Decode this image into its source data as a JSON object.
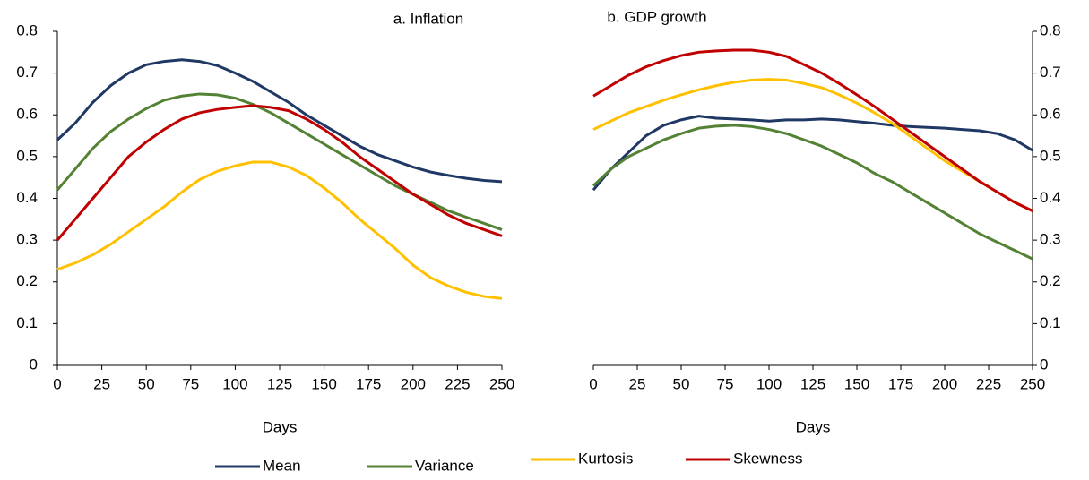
{
  "chart_data": [
    {
      "type": "line",
      "title": "a. Inflation",
      "x_label": "Days",
      "y_axis_side": "left",
      "legend": "bottom",
      "x": [
        0,
        10,
        20,
        30,
        40,
        50,
        60,
        70,
        80,
        90,
        100,
        110,
        120,
        130,
        140,
        150,
        160,
        170,
        180,
        190,
        200,
        210,
        220,
        230,
        240,
        250
      ],
      "xlim": [
        0,
        250
      ],
      "xticks": [
        0,
        25,
        50,
        75,
        100,
        125,
        150,
        175,
        200,
        225,
        250
      ],
      "ylim": [
        0,
        0.8
      ],
      "yticks": [
        0,
        0.1,
        0.2,
        0.3,
        0.4,
        0.5,
        0.6,
        0.7,
        0.8
      ],
      "series": [
        {
          "name": "Mean",
          "color": "#203864",
          "values": [
            0.54,
            0.58,
            0.63,
            0.67,
            0.7,
            0.72,
            0.728,
            0.732,
            0.728,
            0.718,
            0.7,
            0.68,
            0.655,
            0.63,
            0.6,
            0.575,
            0.55,
            0.525,
            0.505,
            0.49,
            0.475,
            0.463,
            0.455,
            0.448,
            0.443,
            0.44
          ]
        },
        {
          "name": "Variance",
          "color": "#548235",
          "values": [
            0.42,
            0.47,
            0.52,
            0.56,
            0.59,
            0.615,
            0.635,
            0.645,
            0.65,
            0.648,
            0.64,
            0.625,
            0.605,
            0.58,
            0.555,
            0.53,
            0.505,
            0.48,
            0.455,
            0.43,
            0.41,
            0.39,
            0.37,
            0.355,
            0.34,
            0.325
          ]
        },
        {
          "name": "Kurtosis",
          "color": "#ffc000",
          "values": [
            0.23,
            0.245,
            0.265,
            0.29,
            0.32,
            0.35,
            0.38,
            0.415,
            0.445,
            0.465,
            0.478,
            0.487,
            0.487,
            0.475,
            0.455,
            0.425,
            0.39,
            0.35,
            0.315,
            0.28,
            0.24,
            0.21,
            0.19,
            0.175,
            0.165,
            0.16
          ]
        },
        {
          "name": "Skewness",
          "color": "#c00000",
          "values": [
            0.3,
            0.35,
            0.4,
            0.45,
            0.5,
            0.535,
            0.565,
            0.59,
            0.605,
            0.613,
            0.618,
            0.622,
            0.618,
            0.61,
            0.59,
            0.565,
            0.535,
            0.5,
            0.47,
            0.44,
            0.41,
            0.385,
            0.36,
            0.34,
            0.325,
            0.31
          ]
        }
      ]
    },
    {
      "type": "line",
      "title": "b. GDP growth",
      "x_label": "Days",
      "y_axis_side": "right",
      "legend": "bottom",
      "x": [
        0,
        10,
        20,
        30,
        40,
        50,
        60,
        70,
        80,
        90,
        100,
        110,
        120,
        130,
        140,
        150,
        160,
        170,
        180,
        190,
        200,
        210,
        220,
        230,
        240,
        250
      ],
      "xlim": [
        0,
        250
      ],
      "xticks": [
        0,
        25,
        50,
        75,
        100,
        125,
        150,
        175,
        200,
        225,
        250
      ],
      "ylim": [
        0,
        0.8
      ],
      "yticks": [
        0,
        0.1,
        0.2,
        0.3,
        0.4,
        0.5,
        0.6,
        0.7,
        0.8
      ],
      "series": [
        {
          "name": "Mean",
          "color": "#203864",
          "values": [
            0.42,
            0.47,
            0.51,
            0.55,
            0.575,
            0.588,
            0.597,
            0.592,
            0.59,
            0.588,
            0.585,
            0.588,
            0.588,
            0.59,
            0.588,
            0.584,
            0.58,
            0.575,
            0.572,
            0.57,
            0.568,
            0.565,
            0.562,
            0.555,
            0.54,
            0.515
          ]
        },
        {
          "name": "Variance",
          "color": "#548235",
          "values": [
            0.43,
            0.47,
            0.5,
            0.52,
            0.54,
            0.555,
            0.568,
            0.573,
            0.575,
            0.572,
            0.565,
            0.555,
            0.54,
            0.525,
            0.505,
            0.485,
            0.46,
            0.44,
            0.415,
            0.39,
            0.365,
            0.34,
            0.315,
            0.295,
            0.275,
            0.255
          ]
        },
        {
          "name": "Kurtosis",
          "color": "#ffc000",
          "values": [
            0.565,
            0.585,
            0.605,
            0.62,
            0.635,
            0.648,
            0.66,
            0.67,
            0.678,
            0.683,
            0.685,
            0.683,
            0.675,
            0.665,
            0.648,
            0.628,
            0.605,
            0.58,
            0.55,
            0.52,
            0.49,
            0.465,
            0.44,
            0.415,
            0.39,
            0.37
          ]
        },
        {
          "name": "Skewness",
          "color": "#c00000",
          "values": [
            0.645,
            0.67,
            0.695,
            0.715,
            0.73,
            0.742,
            0.75,
            0.753,
            0.755,
            0.755,
            0.75,
            0.74,
            0.72,
            0.7,
            0.675,
            0.648,
            0.62,
            0.59,
            0.56,
            0.53,
            0.5,
            0.47,
            0.44,
            0.415,
            0.39,
            0.37
          ]
        }
      ]
    }
  ]
}
